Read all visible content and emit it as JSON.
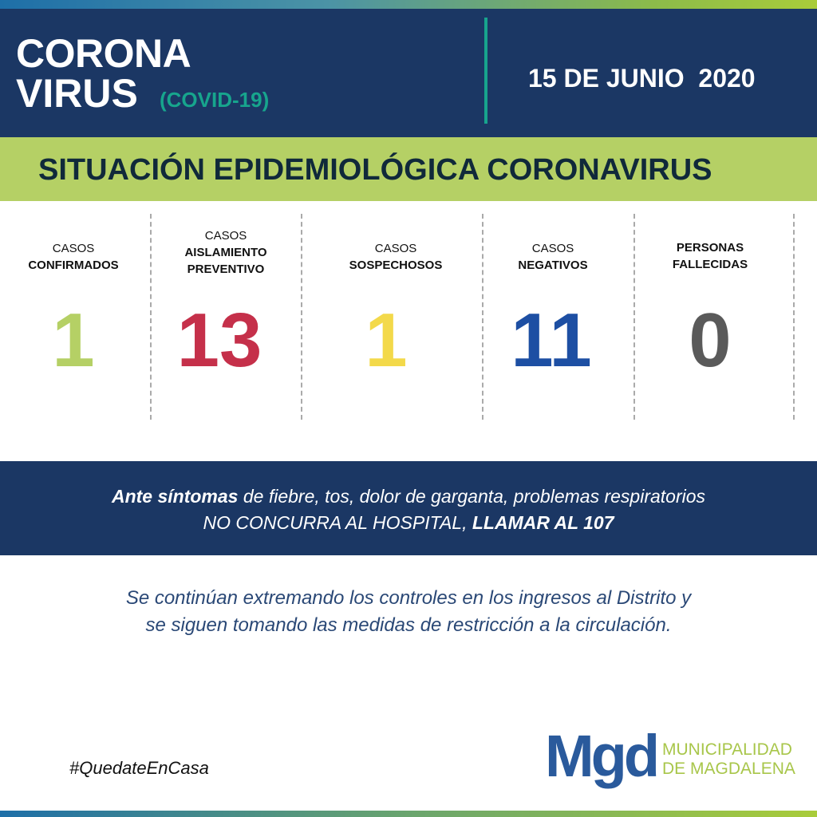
{
  "header": {
    "title_line1": "CORONA",
    "title_line2": "VIRUS",
    "subtitle": "(COVID-19)",
    "date": "15 DE JUNIO  2020"
  },
  "banner": "SITUACIÓN EPIDEMIOLÓGICA CORONAVIRUS",
  "stats": [
    {
      "label_top": "CASOS",
      "label_bold": "CONFIRMADOS",
      "value": "1",
      "color": "#b5d065"
    },
    {
      "label_top": "CASOS",
      "label_bold": "AISLAMIENTO PREVENTIVO",
      "value": "13",
      "color": "#c5304a"
    },
    {
      "label_top": "CASOS",
      "label_bold": "SOSPECHOSOS",
      "value": "1",
      "color": "#f3d94a"
    },
    {
      "label_top": "CASOS",
      "label_bold": "NEGATIVOS",
      "value": "11",
      "color": "#1d4fa3"
    },
    {
      "label_top": "",
      "label_bold": "PERSONAS FALLECIDAS",
      "value": "0",
      "color": "#5a5a5a"
    }
  ],
  "alert": {
    "bold1": "Ante síntomas",
    "text1": " de fiebre, tos, dolor de garganta, problemas respiratorios",
    "text2": "NO CONCURRA AL HOSPITAL, ",
    "bold2": "LLAMAR AL 107"
  },
  "body": {
    "line1": "Se continúan extremando los controles en los ingresos al Distrito y",
    "line2": "se siguen tomando las medidas de restricción a la circulación."
  },
  "hashtag": "#QuedateEnCasa",
  "logo": {
    "mark": "Mgd",
    "line1": "MUNICIPALIDAD",
    "line2": "DE MAGDALENA"
  }
}
